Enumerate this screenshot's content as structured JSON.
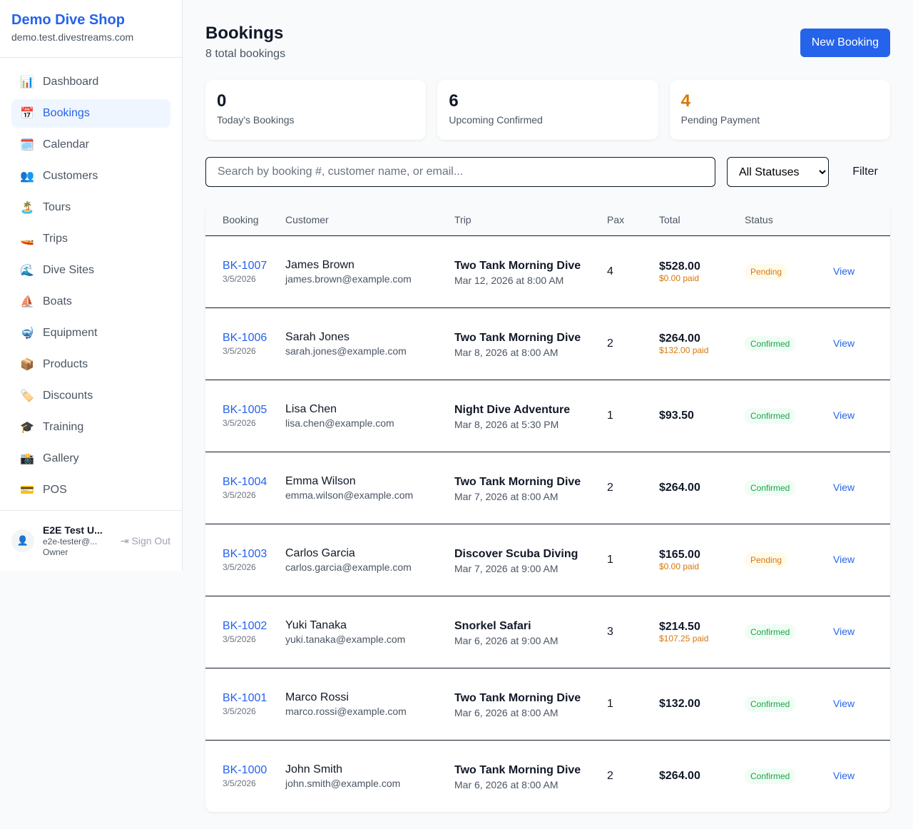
{
  "sidebar": {
    "brand": "Demo Dive Shop",
    "host": "demo.test.divestreams.com",
    "items": [
      {
        "label": "Dashboard",
        "icon": "📊"
      },
      {
        "label": "Bookings",
        "icon": "📅",
        "active": true
      },
      {
        "label": "Calendar",
        "icon": "🗓️"
      },
      {
        "label": "Customers",
        "icon": "👥"
      },
      {
        "label": "Tours",
        "icon": "🏝️"
      },
      {
        "label": "Trips",
        "icon": "🚤"
      },
      {
        "label": "Dive Sites",
        "icon": "🌊"
      },
      {
        "label": "Boats",
        "icon": "⛵"
      },
      {
        "label": "Equipment",
        "icon": "🤿"
      },
      {
        "label": "Products",
        "icon": "📦"
      },
      {
        "label": "Discounts",
        "icon": "🏷️"
      },
      {
        "label": "Training",
        "icon": "🎓"
      },
      {
        "label": "Gallery",
        "icon": "📸"
      },
      {
        "label": "POS",
        "icon": "💳"
      }
    ],
    "user": {
      "name": "E2E Test U...",
      "email": "e2e-tester@...",
      "role": "Owner",
      "sign_out": "Sign Out"
    }
  },
  "header": {
    "title": "Bookings",
    "subtitle": "8 total bookings",
    "new_button": "New Booking"
  },
  "stats": [
    {
      "value": "0",
      "label": "Today's Bookings",
      "color": "#111827"
    },
    {
      "value": "6",
      "label": "Upcoming Confirmed",
      "color": "#111827"
    },
    {
      "value": "4",
      "label": "Pending Payment",
      "color": "#d97706"
    }
  ],
  "filters": {
    "search_placeholder": "Search by booking #, customer name, or email...",
    "status_selected": "All Statuses",
    "filter_label": "Filter"
  },
  "table": {
    "headers": [
      "Booking",
      "Customer",
      "Trip",
      "Pax",
      "Total",
      "Status",
      ""
    ],
    "rows": [
      {
        "id": "BK-1007",
        "date": "3/5/2026",
        "name": "James Brown",
        "email": "james.brown@example.com",
        "trip": "Two Tank Morning Dive",
        "when": "Mar 12, 2026 at 8:00 AM",
        "pax": "4",
        "total": "$528.00",
        "paid": "$0.00 paid",
        "status": "Pending",
        "action": "View"
      },
      {
        "id": "BK-1006",
        "date": "3/5/2026",
        "name": "Sarah Jones",
        "email": "sarah.jones@example.com",
        "trip": "Two Tank Morning Dive",
        "when": "Mar 8, 2026 at 8:00 AM",
        "pax": "2",
        "total": "$264.00",
        "paid": "$132.00 paid",
        "status": "Confirmed",
        "action": "View"
      },
      {
        "id": "BK-1005",
        "date": "3/5/2026",
        "name": "Lisa Chen",
        "email": "lisa.chen@example.com",
        "trip": "Night Dive Adventure",
        "when": "Mar 8, 2026 at 5:30 PM",
        "pax": "1",
        "total": "$93.50",
        "paid": null,
        "status": "Confirmed",
        "action": "View"
      },
      {
        "id": "BK-1004",
        "date": "3/5/2026",
        "name": "Emma Wilson",
        "email": "emma.wilson@example.com",
        "trip": "Two Tank Morning Dive",
        "when": "Mar 7, 2026 at 8:00 AM",
        "pax": "2",
        "total": "$264.00",
        "paid": null,
        "status": "Confirmed",
        "action": "View"
      },
      {
        "id": "BK-1003",
        "date": "3/5/2026",
        "name": "Carlos Garcia",
        "email": "carlos.garcia@example.com",
        "trip": "Discover Scuba Diving",
        "when": "Mar 7, 2026 at 9:00 AM",
        "pax": "1",
        "total": "$165.00",
        "paid": "$0.00 paid",
        "status": "Pending",
        "action": "View"
      },
      {
        "id": "BK-1002",
        "date": "3/5/2026",
        "name": "Yuki Tanaka",
        "email": "yuki.tanaka@example.com",
        "trip": "Snorkel Safari",
        "when": "Mar 6, 2026 at 9:00 AM",
        "pax": "3",
        "total": "$214.50",
        "paid": "$107.25 paid",
        "status": "Confirmed",
        "action": "View"
      },
      {
        "id": "BK-1001",
        "date": "3/5/2026",
        "name": "Marco Rossi",
        "email": "marco.rossi@example.com",
        "trip": "Two Tank Morning Dive",
        "when": "Mar 6, 2026 at 8:00 AM",
        "pax": "1",
        "total": "$132.00",
        "paid": null,
        "status": "Confirmed",
        "action": "View"
      },
      {
        "id": "BK-1000",
        "date": "3/5/2026",
        "name": "John Smith",
        "email": "john.smith@example.com",
        "trip": "Two Tank Morning Dive",
        "when": "Mar 6, 2026 at 8:00 AM",
        "pax": "2",
        "total": "$264.00",
        "paid": null,
        "status": "Confirmed",
        "action": "View"
      }
    ]
  }
}
